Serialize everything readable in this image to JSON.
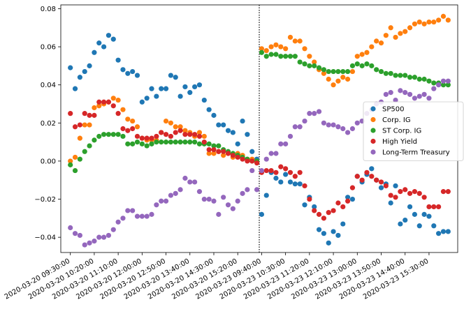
{
  "chart_data": {
    "type": "scatter",
    "title": "",
    "xlabel": "",
    "ylabel": "",
    "ylim": [
      -0.048,
      0.082
    ],
    "yticks": [
      -0.04,
      -0.02,
      0.0,
      0.02,
      0.04,
      0.06,
      0.08
    ],
    "ytick_labels": [
      "−0.04",
      "−0.02",
      "0.00",
      "0.02",
      "0.04",
      "0.06",
      "0.08"
    ],
    "x": [
      0,
      1,
      2,
      3,
      4,
      5,
      6,
      7,
      8,
      9,
      10,
      11,
      12,
      13,
      14,
      15,
      16,
      17,
      18,
      19,
      20,
      21,
      22,
      23,
      24,
      25,
      26,
      27,
      28,
      29,
      30,
      31,
      32,
      33,
      34,
      35,
      36,
      37,
      38,
      39,
      40,
      41,
      42,
      43,
      44,
      45,
      46,
      47,
      48,
      49,
      50,
      51,
      52,
      53,
      54,
      55,
      56,
      57,
      58,
      59,
      60,
      61,
      62,
      63,
      64,
      65,
      66,
      67,
      68,
      69,
      70,
      71,
      72,
      73,
      74,
      75,
      76,
      77,
      78,
      79
    ],
    "xlim": [
      -2,
      81
    ],
    "xticks": [
      0,
      5,
      10,
      15,
      20,
      25,
      30,
      35,
      40,
      45,
      50,
      55,
      60,
      65,
      70,
      75
    ],
    "xtick_labels": [
      "2020-03-20 09:30:00",
      "2020-03-20 10:20:00",
      "2020-03-20 11:10:00",
      "2020-03-20 12:00:00",
      "2020-03-20 12:50:00",
      "2020-03-20 13:40:00",
      "2020-03-20 14:30:00",
      "2020-03-20 15:20:00",
      "2020-03-23 09:40:00",
      "2020-03-23 10:30:00",
      "2020-03-23 11:20:00",
      "2020-03-23 12:10:00",
      "2020-03-23 13:00:00",
      "2020-03-23 13:50:00",
      "2020-03-23 14:40:00",
      "2020-03-23 15:30:00"
    ],
    "vline_x": 39.5,
    "legend_position": "center-right",
    "series": [
      {
        "name": "SP500",
        "color": "#1f77b4",
        "values": [
          0.049,
          0.038,
          0.044,
          0.047,
          0.05,
          0.057,
          0.062,
          0.06,
          0.066,
          0.064,
          0.053,
          0.048,
          0.046,
          0.047,
          0.045,
          0.031,
          0.033,
          0.038,
          0.034,
          0.038,
          0.038,
          0.045,
          0.044,
          0.034,
          0.039,
          0.036,
          0.039,
          0.04,
          0.032,
          0.027,
          0.024,
          0.019,
          0.019,
          0.016,
          0.015,
          0.009,
          0.021,
          0.014,
          0.005,
          0.001,
          -0.028,
          -0.018,
          -0.006,
          -0.009,
          -0.011,
          -0.007,
          -0.011,
          -0.012,
          -0.012,
          -0.023,
          -0.019,
          -0.024,
          -0.036,
          -0.038,
          -0.043,
          -0.037,
          -0.039,
          -0.033,
          -0.019,
          -0.02,
          -0.008,
          -0.011,
          -0.007,
          -0.004,
          -0.01,
          -0.014,
          -0.012,
          -0.022,
          -0.013,
          -0.033,
          -0.031,
          -0.024,
          -0.028,
          -0.034,
          -0.028,
          -0.029,
          -0.034,
          -0.038,
          -0.037,
          -0.037
        ]
      },
      {
        "name": "Corp. IG",
        "color": "#ff7f0e",
        "values": [
          0.0,
          0.002,
          0.012,
          0.019,
          0.019,
          0.028,
          0.029,
          0.03,
          0.031,
          0.033,
          0.032,
          0.027,
          0.022,
          0.021,
          0.018,
          0.012,
          0.011,
          0.011,
          0.011,
          0.015,
          0.021,
          0.02,
          0.018,
          0.018,
          0.016,
          0.015,
          0.013,
          0.015,
          0.013,
          0.004,
          0.004,
          0.005,
          0.003,
          0.004,
          0.002,
          0.004,
          0.003,
          0.001,
          0.001,
          0.0,
          0.059,
          0.058,
          0.06,
          0.061,
          0.06,
          0.059,
          0.065,
          0.063,
          0.063,
          0.059,
          0.055,
          0.052,
          0.048,
          0.046,
          0.043,
          0.04,
          0.042,
          0.044,
          0.043,
          0.047,
          0.055,
          0.056,
          0.057,
          0.06,
          0.063,
          0.062,
          0.066,
          0.07,
          0.065,
          0.067,
          0.068,
          0.07,
          0.072,
          0.073,
          0.072,
          0.073,
          0.073,
          0.074,
          0.076,
          0.074
        ]
      },
      {
        "name": "ST Corp. IG",
        "color": "#2ca02c",
        "values": [
          -0.002,
          -0.005,
          0.001,
          0.005,
          0.008,
          0.011,
          0.013,
          0.014,
          0.014,
          0.014,
          0.014,
          0.013,
          0.009,
          0.009,
          0.01,
          0.009,
          0.008,
          0.009,
          0.01,
          0.01,
          0.01,
          0.01,
          0.01,
          0.01,
          0.01,
          0.01,
          0.01,
          0.009,
          0.009,
          0.009,
          0.008,
          0.008,
          0.006,
          0.005,
          0.004,
          0.003,
          0.002,
          0.001,
          0.0,
          0.0,
          0.057,
          0.055,
          0.056,
          0.056,
          0.055,
          0.055,
          0.055,
          0.055,
          0.052,
          0.051,
          0.05,
          0.05,
          0.049,
          0.048,
          0.047,
          0.047,
          0.047,
          0.047,
          0.047,
          0.05,
          0.051,
          0.05,
          0.051,
          0.05,
          0.048,
          0.047,
          0.046,
          0.046,
          0.045,
          0.045,
          0.045,
          0.044,
          0.044,
          0.043,
          0.043,
          0.042,
          0.041,
          0.041,
          0.04,
          0.04
        ]
      },
      {
        "name": "High Yield",
        "color": "#d62728",
        "values": [
          0.025,
          0.018,
          0.019,
          0.025,
          0.024,
          0.024,
          0.031,
          0.031,
          0.031,
          0.029,
          0.025,
          0.017,
          0.016,
          0.017,
          0.013,
          0.012,
          0.012,
          0.012,
          0.013,
          0.015,
          0.014,
          0.013,
          0.015,
          0.016,
          0.014,
          0.014,
          0.014,
          0.013,
          0.01,
          0.006,
          0.006,
          0.005,
          0.005,
          0.004,
          0.003,
          0.002,
          0.001,
          0.0,
          0.0,
          -0.001,
          -0.006,
          -0.005,
          -0.005,
          -0.006,
          -0.003,
          -0.004,
          -0.006,
          -0.008,
          -0.006,
          -0.013,
          -0.02,
          -0.026,
          -0.028,
          -0.03,
          -0.027,
          -0.026,
          -0.022,
          -0.024,
          -0.021,
          -0.014,
          -0.008,
          -0.01,
          -0.006,
          -0.008,
          -0.01,
          -0.011,
          -0.013,
          -0.018,
          -0.019,
          -0.016,
          -0.015,
          -0.017,
          -0.016,
          -0.017,
          -0.019,
          -0.024,
          -0.024,
          -0.024,
          -0.016,
          -0.016
        ]
      },
      {
        "name": "Long-Term Treasury",
        "color": "#9467bd",
        "values": [
          -0.035,
          -0.038,
          -0.039,
          -0.044,
          -0.043,
          -0.042,
          -0.04,
          -0.04,
          -0.039,
          -0.036,
          -0.032,
          -0.03,
          -0.026,
          -0.026,
          -0.029,
          -0.029,
          -0.029,
          -0.028,
          -0.023,
          -0.021,
          -0.021,
          -0.018,
          -0.017,
          -0.015,
          -0.009,
          -0.011,
          -0.011,
          -0.016,
          -0.02,
          -0.02,
          -0.021,
          -0.028,
          -0.019,
          -0.023,
          -0.025,
          -0.021,
          -0.017,
          -0.015,
          -0.005,
          -0.015,
          -0.005,
          0.001,
          0.004,
          0.004,
          0.009,
          0.009,
          0.013,
          0.018,
          0.018,
          0.021,
          0.025,
          0.025,
          0.026,
          0.02,
          0.019,
          0.019,
          0.018,
          0.017,
          0.015,
          0.017,
          0.02,
          0.021,
          0.025,
          0.027,
          0.03,
          0.031,
          0.035,
          0.036,
          0.032,
          0.037,
          0.036,
          0.035,
          0.033,
          0.034,
          0.035,
          0.033,
          0.038,
          0.04,
          0.042,
          0.042
        ]
      }
    ]
  }
}
